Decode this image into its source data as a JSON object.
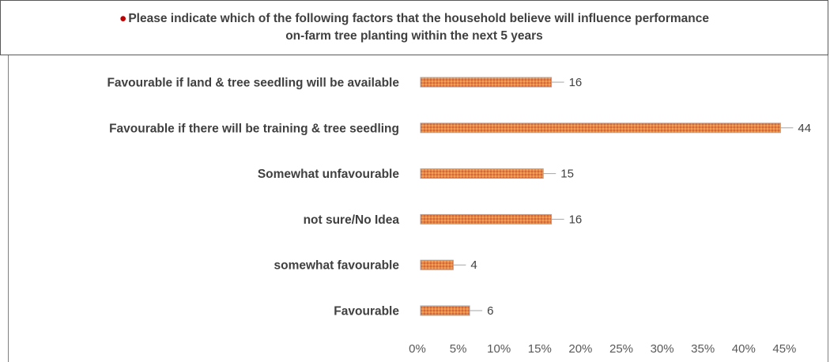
{
  "chart_data": {
    "type": "bar",
    "orientation": "horizontal",
    "title_line1": "Please indicate which of the following factors that the household believe will influence performance",
    "title_line2": "on-farm tree planting within the next 5 years",
    "categories": [
      "Favourable if land & tree seedling will be available",
      "Favourable if there will be training & tree seedling",
      "Somewhat unfavourable",
      "not sure/No Idea",
      "somewhat favourable",
      "Favourable"
    ],
    "series": [
      {
        "values": [
          16,
          44,
          15,
          16,
          4,
          6
        ]
      }
    ],
    "x_tick_labels": [
      "0%",
      "5%",
      "10%",
      "15%",
      "20%",
      "25%",
      "30%",
      "35%",
      "40%",
      "45%"
    ],
    "xlim": [
      0,
      45
    ],
    "grid": false,
    "legend": "none",
    "bar_color": "#e07a2e",
    "bar_pattern_color": "#c0504d",
    "title_bullet_color": "#c00000"
  }
}
